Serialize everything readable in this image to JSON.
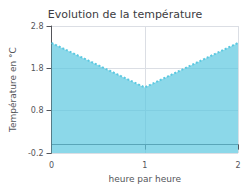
{
  "chart_data": {
    "type": "area",
    "title": "Evolution de la température",
    "xlabel": "heure par heure",
    "ylabel": "Température en °C",
    "x": [
      0,
      1,
      2
    ],
    "series": [
      {
        "values": [
          2.4,
          1.35,
          2.4
        ],
        "color": "#5bc8e0",
        "line_style": "dotted"
      }
    ],
    "xlim": [
      0,
      2
    ],
    "xticks": [
      0,
      1,
      2
    ],
    "ylim": [
      -0.2,
      2.8
    ],
    "yticks": [
      -0.2,
      0.8,
      1.8,
      2.8
    ],
    "grid": true
  }
}
